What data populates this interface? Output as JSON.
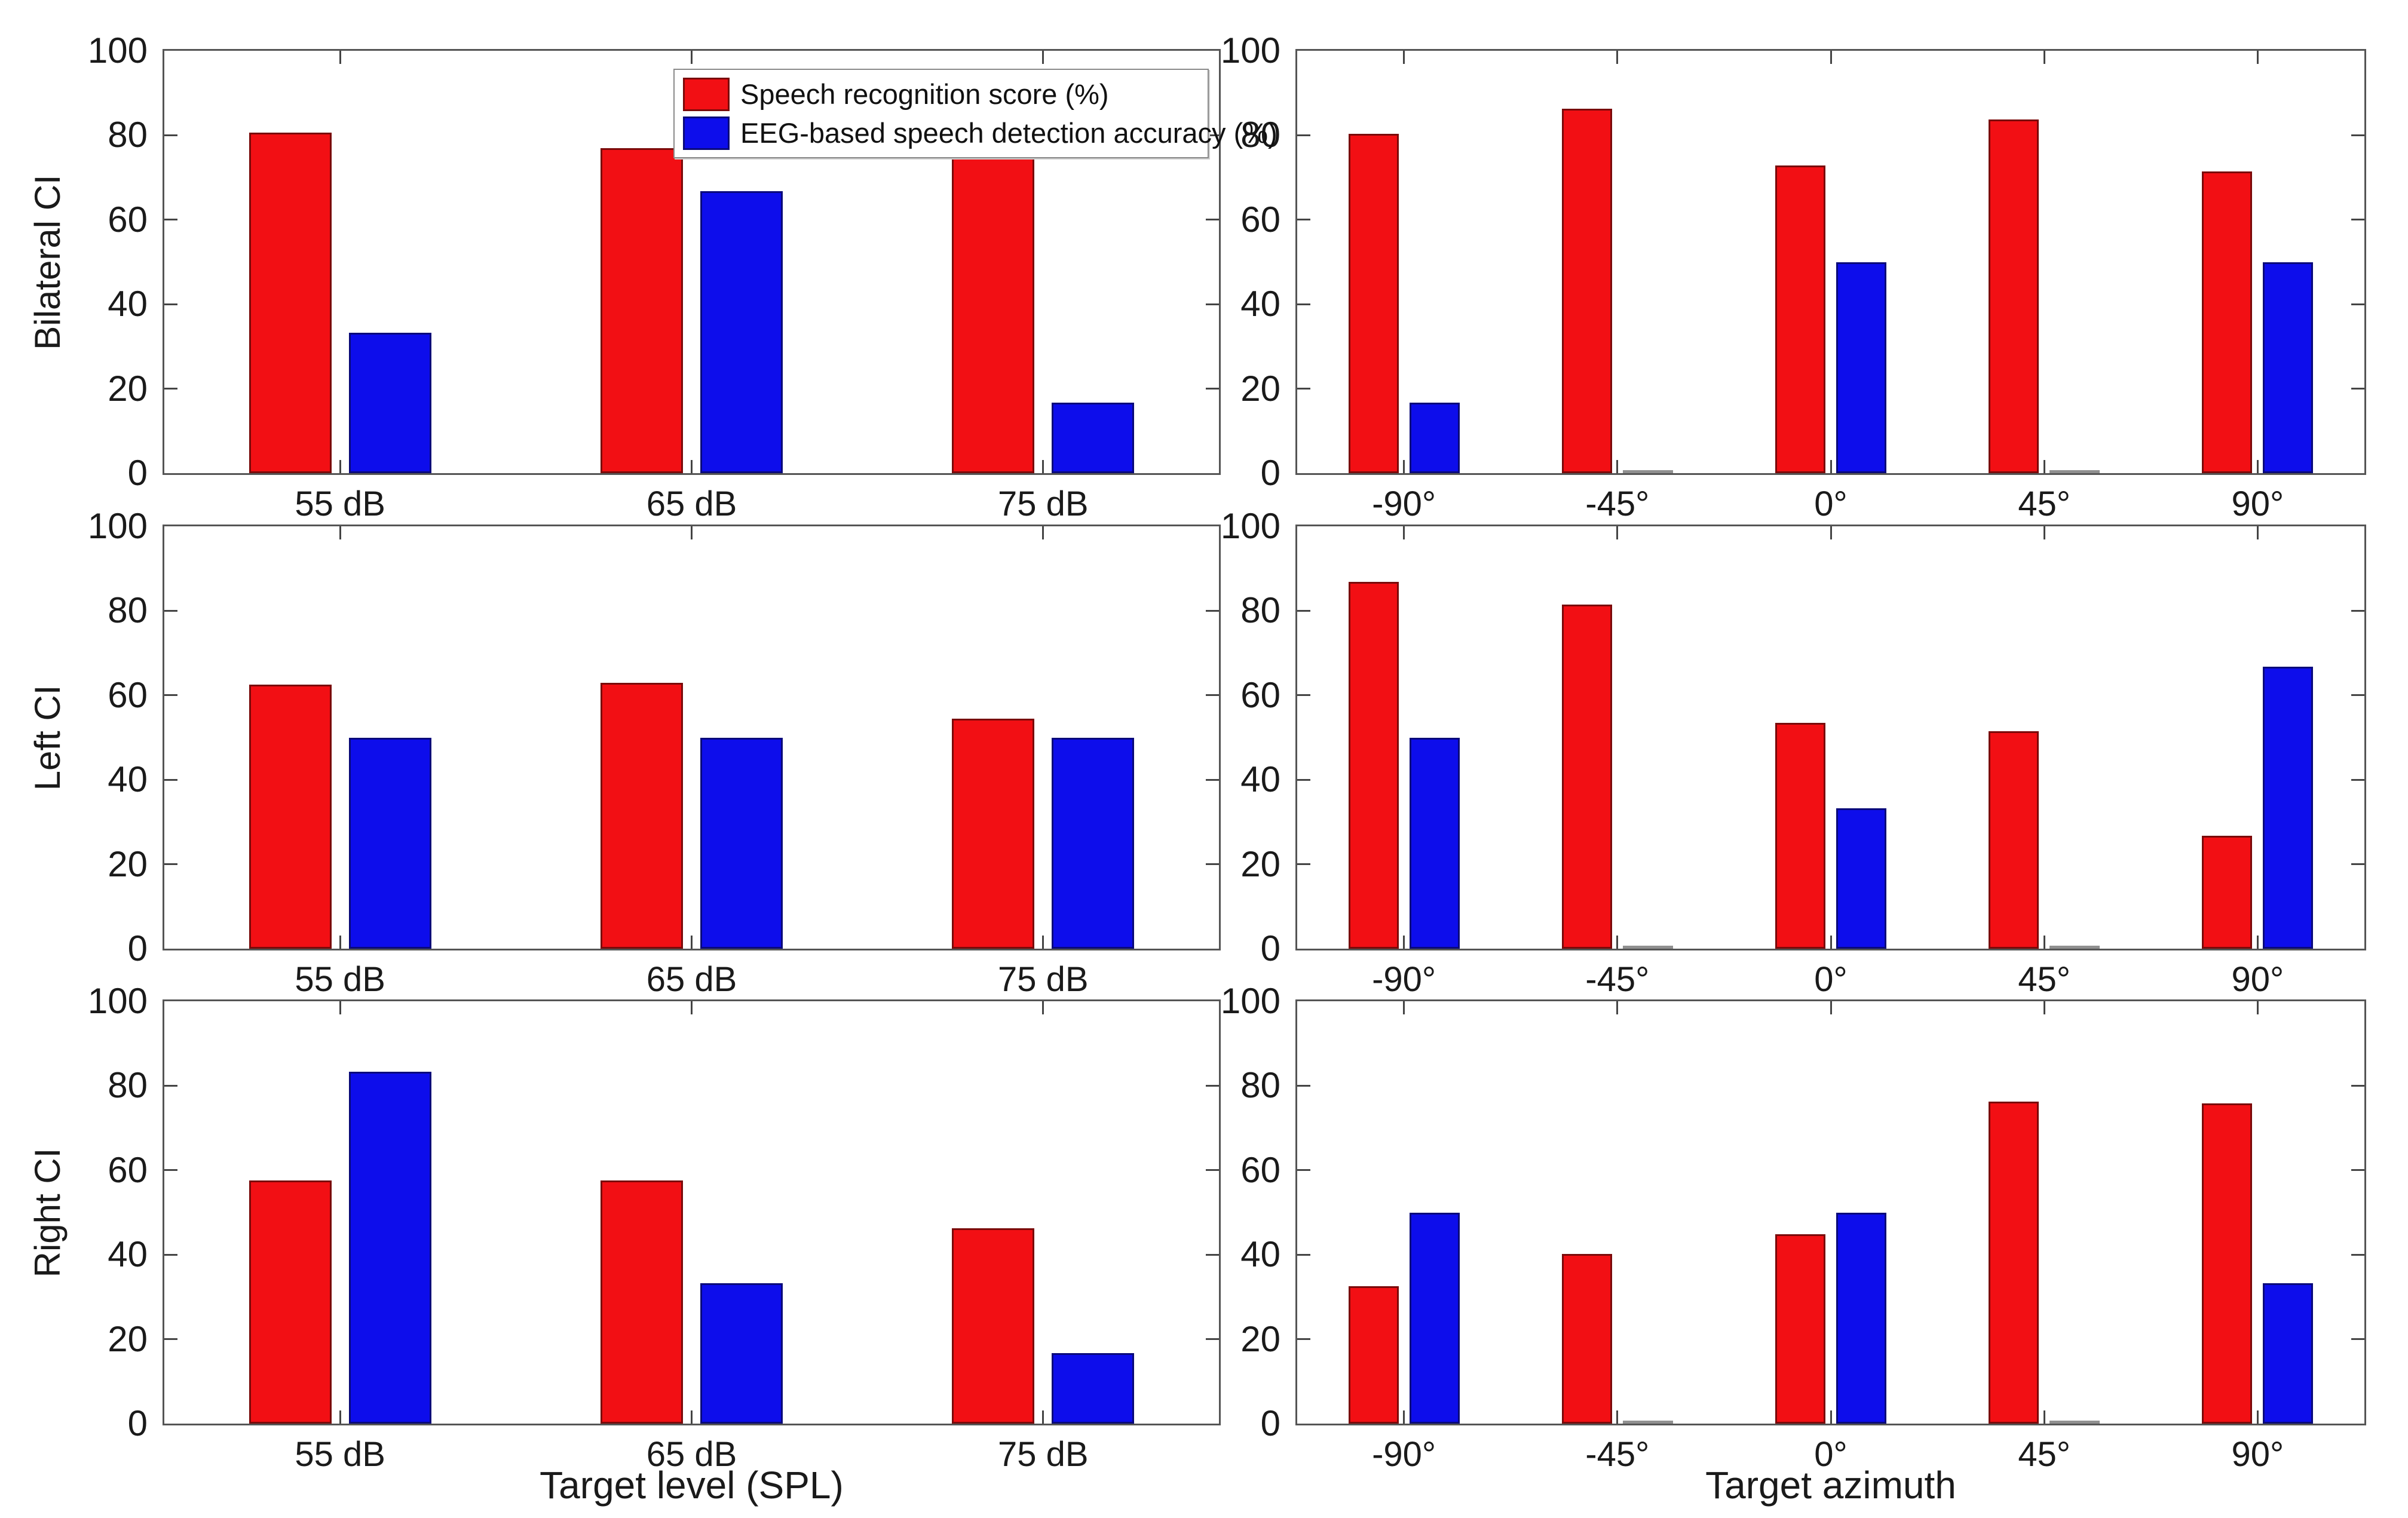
{
  "figure": {
    "row_labels": [
      "Bilateral CI",
      "Left CI",
      "Right CI"
    ],
    "x_axis_labels": [
      "Target level (SPL)",
      "Target azimuth"
    ],
    "y_ticks": [
      0,
      20,
      40,
      60,
      80,
      100
    ],
    "colors": {
      "speech": "#f20f14",
      "eeg": "#0d0deb"
    },
    "legend": {
      "items": [
        {
          "label": "Speech recognition score (%)",
          "color": "#f20f14"
        },
        {
          "label": "EEG-based speech detection accuracy (%)",
          "color": "#0d0deb"
        }
      ]
    }
  },
  "chart_data": [
    {
      "type": "bar",
      "row": "Bilateral CI",
      "xlabel": "",
      "categories": [
        "55 dB",
        "65 dB",
        "75 dB"
      ],
      "series": [
        {
          "name": "Speech recognition score (%)",
          "color": "#f20f14",
          "values": [
            80.6,
            77.0,
            79.0
          ]
        },
        {
          "name": "EEG-based speech detection accuracy (%)",
          "color": "#0d0deb",
          "values": [
            33.3,
            66.7,
            16.7
          ]
        }
      ],
      "ylim": [
        0,
        100
      ],
      "y_ticks": [
        0,
        20,
        40,
        60,
        80,
        100
      ],
      "grid": false,
      "legend_position": "northeast-inside"
    },
    {
      "type": "bar",
      "row": "Bilateral CI",
      "xlabel": "",
      "categories": [
        "-90°",
        "-45°",
        "0°",
        "45°",
        "90°"
      ],
      "series": [
        {
          "name": "Speech recognition score (%)",
          "color": "#f20f14",
          "values": [
            80.3,
            86.3,
            72.9,
            83.8,
            71.5
          ]
        },
        {
          "name": "EEG-based speech detection accuracy (%)",
          "color": "#0d0deb",
          "values": [
            16.7,
            0,
            50,
            0,
            50
          ]
        }
      ],
      "ylim": [
        0,
        100
      ],
      "y_ticks": [
        0,
        20,
        40,
        60,
        80,
        100
      ],
      "grid": false
    },
    {
      "type": "bar",
      "row": "Left CI",
      "xlabel": "",
      "categories": [
        "55 dB",
        "65 dB",
        "75 dB"
      ],
      "series": [
        {
          "name": "Speech recognition score (%)",
          "color": "#f20f14",
          "values": [
            62.5,
            62.9,
            54.4
          ]
        },
        {
          "name": "EEG-based speech detection accuracy (%)",
          "color": "#0d0deb",
          "values": [
            50,
            50,
            50
          ]
        }
      ],
      "ylim": [
        0,
        100
      ],
      "y_ticks": [
        0,
        20,
        40,
        60,
        80,
        100
      ],
      "grid": false
    },
    {
      "type": "bar",
      "row": "Left CI",
      "xlabel": "",
      "categories": [
        "-90°",
        "-45°",
        "0°",
        "45°",
        "90°"
      ],
      "series": [
        {
          "name": "Speech recognition score (%)",
          "color": "#f20f14",
          "values": [
            86.8,
            81.5,
            53.4,
            51.5,
            26.8
          ]
        },
        {
          "name": "EEG-based speech detection accuracy (%)",
          "color": "#0d0deb",
          "values": [
            50,
            0,
            33.3,
            0,
            66.7
          ]
        }
      ],
      "ylim": [
        0,
        100
      ],
      "y_ticks": [
        0,
        20,
        40,
        60,
        80,
        100
      ],
      "grid": false
    },
    {
      "type": "bar",
      "row": "Right CI",
      "xlabel": "Target level (SPL)",
      "categories": [
        "55 dB",
        "65 dB",
        "75 dB"
      ],
      "series": [
        {
          "name": "Speech recognition score (%)",
          "color": "#f20f14",
          "values": [
            57.6,
            57.6,
            46.2
          ]
        },
        {
          "name": "EEG-based speech detection accuracy (%)",
          "color": "#0d0deb",
          "values": [
            83.3,
            33.3,
            16.7
          ]
        }
      ],
      "ylim": [
        0,
        100
      ],
      "y_ticks": [
        0,
        20,
        40,
        60,
        80,
        100
      ],
      "grid": false
    },
    {
      "type": "bar",
      "row": "Right CI",
      "xlabel": "Target azimuth",
      "categories": [
        "-90°",
        "-45°",
        "0°",
        "45°",
        "90°"
      ],
      "series": [
        {
          "name": "Speech recognition score (%)",
          "color": "#f20f14",
          "values": [
            32.5,
            40.2,
            44.8,
            76.3,
            75.8
          ]
        },
        {
          "name": "EEG-based speech detection accuracy (%)",
          "color": "#0d0deb",
          "values": [
            50,
            0,
            50,
            0,
            33.3
          ]
        }
      ],
      "ylim": [
        0,
        100
      ],
      "y_ticks": [
        0,
        20,
        40,
        60,
        80,
        100
      ],
      "grid": false
    }
  ]
}
